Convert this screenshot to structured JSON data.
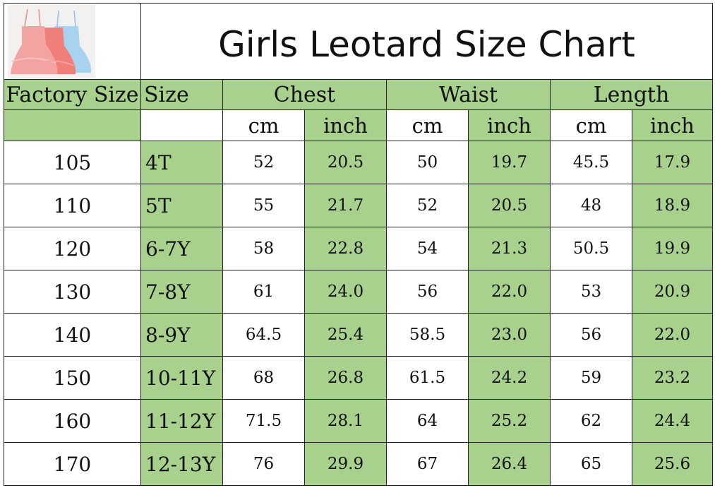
{
  "title": "Girls Leotard Size Chart",
  "headers": {
    "factory_size": "Factory Size",
    "size": "Size",
    "chest": "Chest",
    "waist": "Waist",
    "length": "Length",
    "units": [
      "cm",
      "inch",
      "cm",
      "inch",
      "cm",
      "inch"
    ]
  },
  "rows": [
    {
      "factory": "105",
      "size": "4T",
      "chest_cm": "52",
      "chest_in": "20.5",
      "waist_cm": "50",
      "waist_in": "19.7",
      "length_cm": "45.5",
      "length_in": "17.9"
    },
    {
      "factory": "110",
      "size": "5T",
      "chest_cm": "55",
      "chest_in": "21.7",
      "waist_cm": "52",
      "waist_in": "20.5",
      "length_cm": "48",
      "length_in": "18.9"
    },
    {
      "factory": "120",
      "size": "6-7Y",
      "chest_cm": "58",
      "chest_in": "22.8",
      "waist_cm": "54",
      "waist_in": "21.3",
      "length_cm": "50.5",
      "length_in": "19.9"
    },
    {
      "factory": "130",
      "size": "7-8Y",
      "chest_cm": "61",
      "chest_in": "24.0",
      "waist_cm": "56",
      "waist_in": "22.0",
      "length_cm": "53",
      "length_in": "20.9"
    },
    {
      "factory": "140",
      "size": "8-9Y",
      "chest_cm": "64.5",
      "chest_in": "25.4",
      "waist_cm": "58.5",
      "waist_in": "23.0",
      "length_cm": "56",
      "length_in": "22.0"
    },
    {
      "factory": "150",
      "size": "10-11Y",
      "chest_cm": "68",
      "chest_in": "26.8",
      "waist_cm": "61.5",
      "waist_in": "24.2",
      "length_cm": "59",
      "length_in": "23.2"
    },
    {
      "factory": "160",
      "size": "11-12Y",
      "chest_cm": "71.5",
      "chest_in": "28.1",
      "waist_cm": "64",
      "waist_in": "25.2",
      "length_cm": "62",
      "length_in": "24.4"
    },
    {
      "factory": "170",
      "size": "12-13Y",
      "chest_cm": "76",
      "chest_in": "29.9",
      "waist_cm": "67",
      "waist_in": "26.4",
      "length_cm": "65",
      "length_in": "25.6"
    }
  ],
  "colors": {
    "header_green": "#a9d18e",
    "dress_pink": "#f4a3a3",
    "dress_coral": "#f07f7a",
    "dress_blue": "#a8d2f0"
  },
  "icons": {
    "product_photo": "leotard-dresses-photo"
  }
}
